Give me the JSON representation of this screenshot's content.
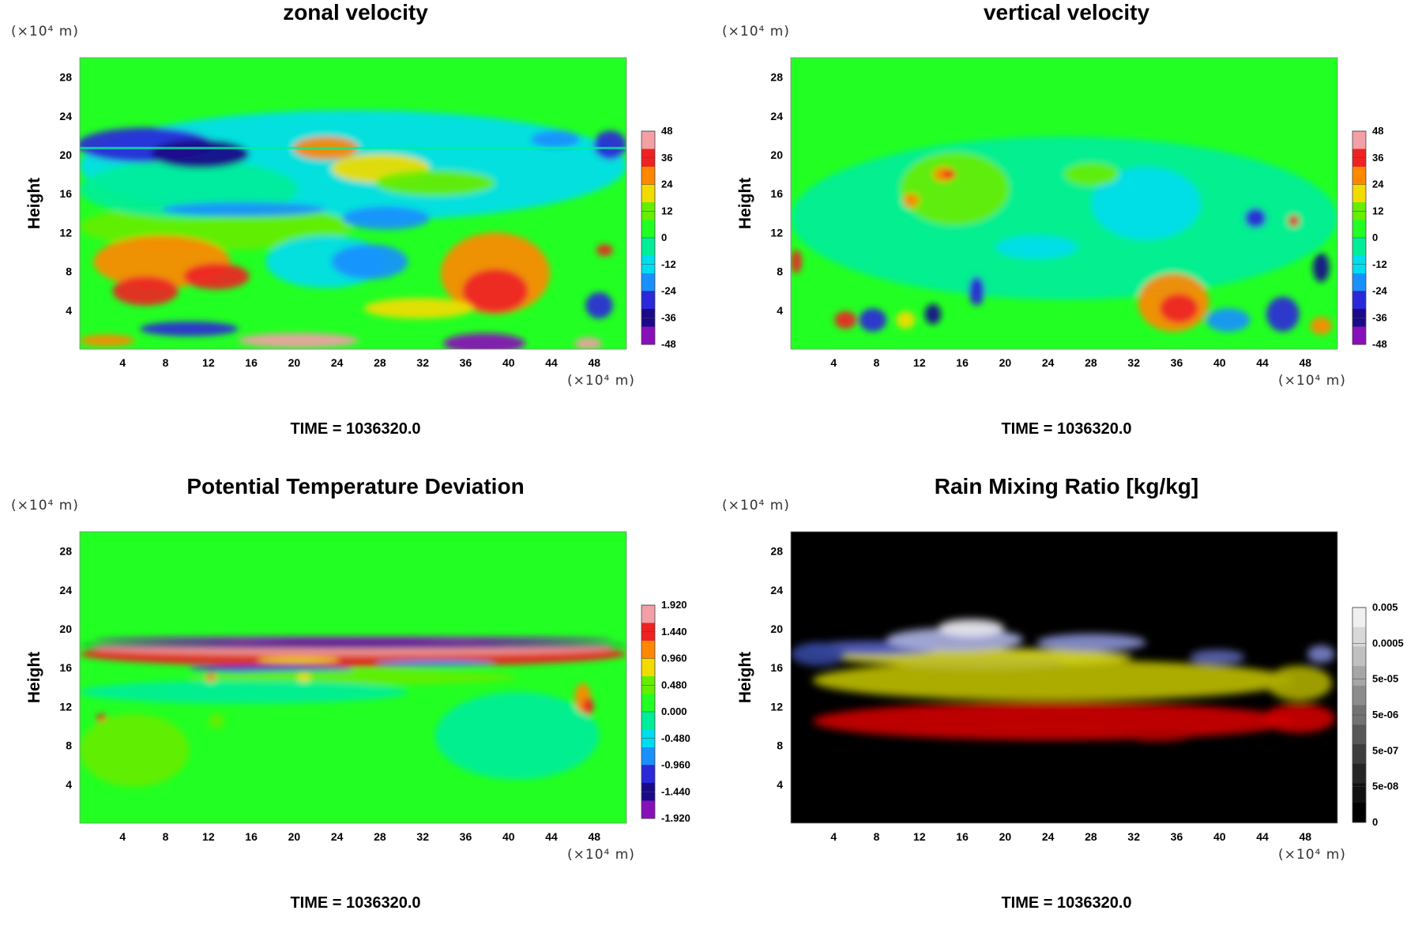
{
  "time_label": "TIME = 1036320.0",
  "chart_data": [
    {
      "type": "heatmap",
      "title": "zonal velocity",
      "ylabel": "Height",
      "y_unit": "(×10⁴ m)",
      "x_unit": "(×10⁴ m)",
      "xticks": [
        "4",
        "8",
        "12",
        "16",
        "20",
        "24",
        "28",
        "32",
        "36",
        "40",
        "44",
        "48"
      ],
      "yticks": [
        "4",
        "8",
        "12",
        "16",
        "20",
        "24",
        "28"
      ],
      "xlim": [
        0,
        51
      ],
      "ylim": [
        0,
        30
      ],
      "colorbar_labels": [
        "48",
        "36",
        "24",
        "12",
        "0",
        "-12",
        "-24",
        "-36",
        "-48"
      ],
      "colormap": "rainbow",
      "time": "TIME = 1036320.0"
    },
    {
      "type": "heatmap",
      "title": "vertical velocity",
      "ylabel": "Height",
      "y_unit": "(×10⁴ m)",
      "x_unit": "(×10⁴ m)",
      "xticks": [
        "4",
        "8",
        "12",
        "16",
        "20",
        "24",
        "28",
        "32",
        "36",
        "40",
        "44",
        "48"
      ],
      "yticks": [
        "4",
        "8",
        "12",
        "16",
        "20",
        "24",
        "28"
      ],
      "xlim": [
        0,
        51
      ],
      "ylim": [
        0,
        30
      ],
      "colorbar_labels": [
        "48",
        "36",
        "24",
        "12",
        "0",
        "-12",
        "-24",
        "-36",
        "-48"
      ],
      "colormap": "rainbow",
      "time": "TIME = 1036320.0"
    },
    {
      "type": "heatmap",
      "title": "Potential Temperature Deviation",
      "ylabel": "Height",
      "y_unit": "(×10⁴ m)",
      "x_unit": "(×10⁴ m)",
      "xticks": [
        "4",
        "8",
        "12",
        "16",
        "20",
        "24",
        "28",
        "32",
        "36",
        "40",
        "44",
        "48"
      ],
      "yticks": [
        "4",
        "8",
        "12",
        "16",
        "20",
        "24",
        "28"
      ],
      "xlim": [
        0,
        51
      ],
      "ylim": [
        0,
        30
      ],
      "colorbar_labels": [
        "1.920",
        "1.440",
        "0.960",
        "0.480",
        "0.000",
        "-0.480",
        "-0.960",
        "-1.440",
        "-1.920"
      ],
      "colormap": "rainbow",
      "time": "TIME = 1036320.0"
    },
    {
      "type": "heatmap",
      "title": "Rain Mixing Ratio [kg/kg]",
      "ylabel": "Height",
      "y_unit": "(×10⁴ m)",
      "x_unit": "(×10⁴ m)",
      "xticks": [
        "4",
        "8",
        "12",
        "16",
        "20",
        "24",
        "28",
        "32",
        "36",
        "40",
        "44",
        "48"
      ],
      "yticks": [
        "4",
        "8",
        "12",
        "16",
        "20",
        "24",
        "28"
      ],
      "xlim": [
        0,
        51
      ],
      "ylim": [
        0,
        30
      ],
      "colorbar_labels": [
        "0.005",
        "0.0005",
        "5e-05",
        "5e-06",
        "5e-07",
        "5e-08",
        "0"
      ],
      "colormap": "grayscale",
      "time": "TIME = 1036320.0"
    }
  ],
  "colors": {
    "background_field": "#22ff22",
    "rain_background": "#000000"
  }
}
